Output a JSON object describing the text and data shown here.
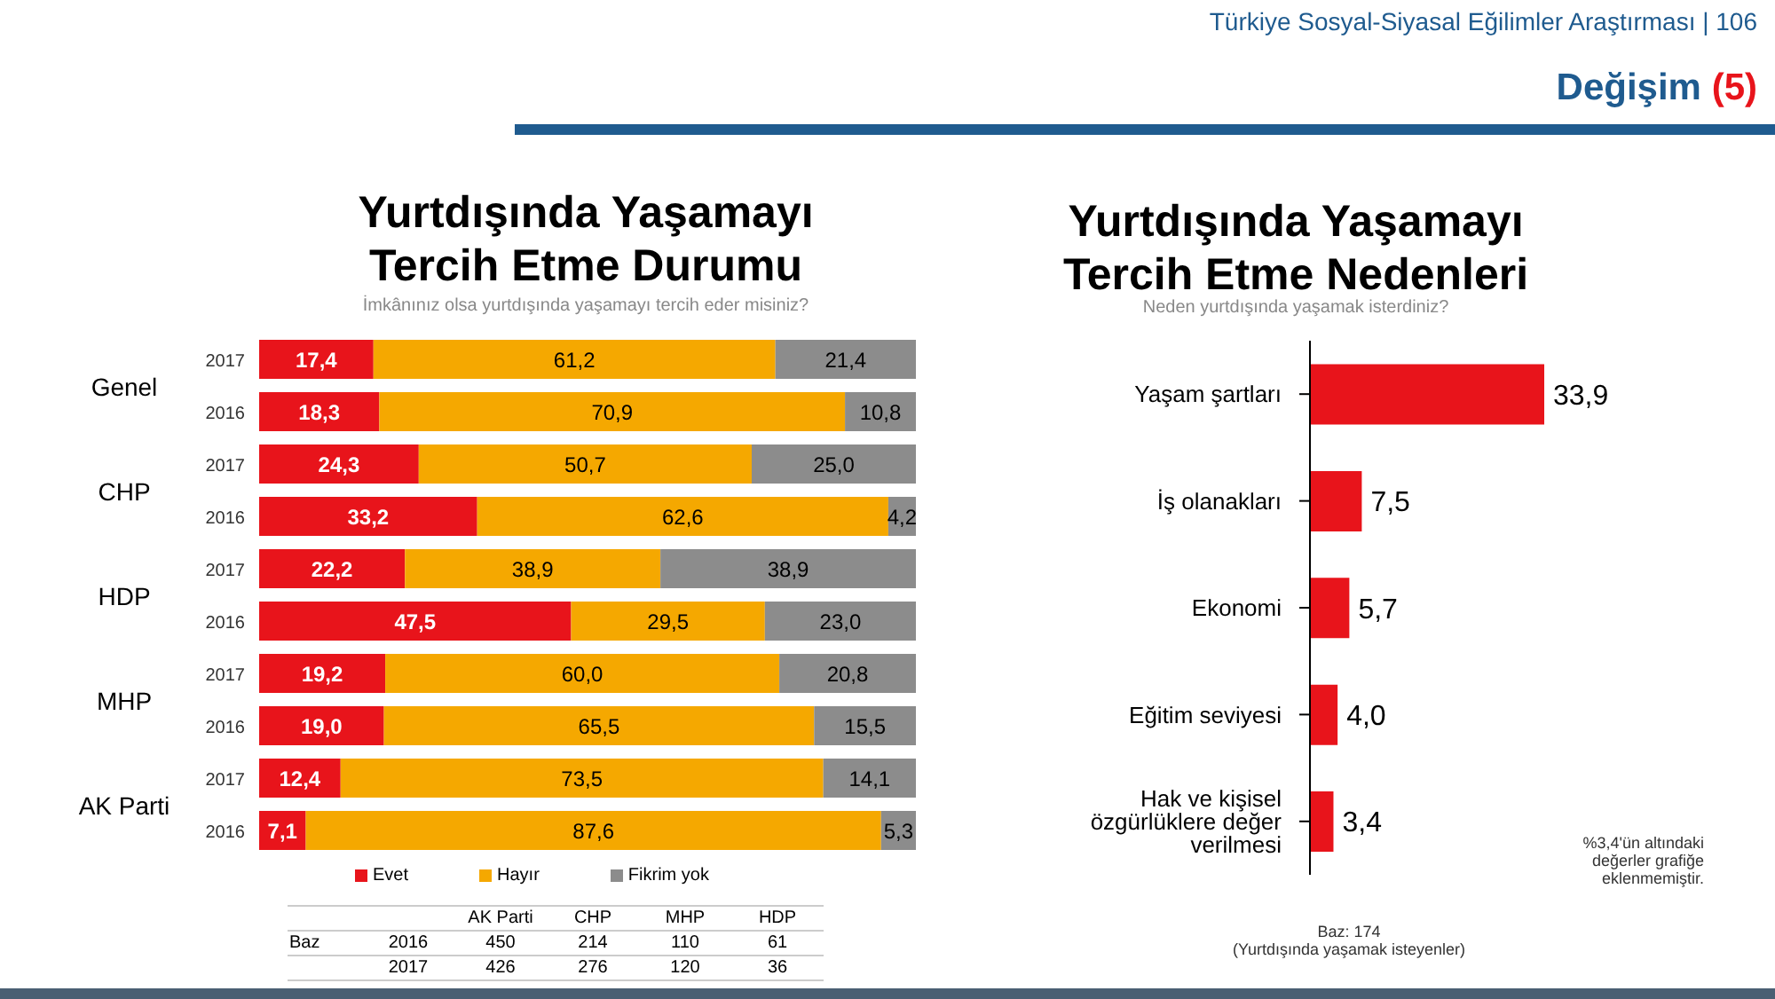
{
  "chart_data": [
    {
      "type": "bar",
      "orientation": "horizontal",
      "stacked": true,
      "title": "Yurtdışında Yaşamayı Tercih Etme Durumu",
      "subtitle": "İmkânınız olsa yurtdışında yaşamayı tercih eder misiniz?",
      "categories": [
        "2017",
        "2016",
        "2017",
        "2016",
        "2017",
        "2016",
        "2017",
        "2016",
        "2017",
        "2016"
      ],
      "series": [
        {
          "name": "Evet",
          "color": "#e8141b",
          "values": [
            17.4,
            18.3,
            24.3,
            33.2,
            22.2,
            47.5,
            19.2,
            19.0,
            12.4,
            7.1
          ],
          "value_labels": [
            "17,4",
            "18,3",
            "24,3",
            "33,2",
            "22,2",
            "47,5",
            "19,2",
            "19,0",
            "12,4",
            "7,1"
          ]
        },
        {
          "name": "Hayır",
          "color": "#f5a800",
          "values": [
            61.2,
            70.9,
            50.7,
            62.6,
            38.9,
            29.5,
            60.0,
            65.5,
            73.5,
            87.6
          ],
          "value_labels": [
            "61,2",
            "70,9",
            "50,7",
            "62,6",
            "38,9",
            "29,5",
            "60,0",
            "65,5",
            "73,5",
            "87,6"
          ]
        },
        {
          "name": "Fikrim yok",
          "color": "#8c8c8c",
          "values": [
            21.4,
            10.8,
            25.0,
            4.2,
            38.9,
            23.0,
            20.8,
            15.5,
            14.1,
            5.3
          ],
          "value_labels": [
            "21,4",
            "10,8",
            "25,0",
            "4,2",
            "38,9",
            "23,0",
            "20,8",
            "15,5",
            "14,1",
            "5,3"
          ]
        }
      ],
      "legend": "bottom",
      "annotations": [
        "Genel",
        "CHP",
        "HDP",
        "MHP",
        "AK Parti",
        "AK Parti",
        "CHP",
        "MHP",
        "HDP",
        "Baz",
        "2016",
        "450",
        "214",
        "110",
        "61",
        "2017",
        "426",
        "276",
        "120",
        "36"
      ]
    },
    {
      "type": "bar",
      "orientation": "horizontal",
      "title": "Yurtdışında Yaşamayı Tercih Etme Nedenleri",
      "subtitle": "Neden yurtdışında yaşamak isterdiniz?",
      "categories": [
        "Yaşam şartları",
        "İş olanakları",
        "Ekonomi",
        "Eğitim seviyesi",
        "Hak ve kişisel özgürlüklere değer verilmesi"
      ],
      "values": [
        33.9,
        7.5,
        5.7,
        4.0,
        3.4
      ],
      "value_labels": [
        "33,9",
        "7,5",
        "5,7",
        "4,0",
        "3,4"
      ],
      "color": "#e8141b",
      "annotations": [
        "%3,4'ün altındaki değerler grafiğe eklenmemiştir.",
        "Baz: 174",
        "(Yurtdışında yaşamak isteyenler)",
        "Türkiye Sosyal-Siyasal Eğilimler Araştırması | 106",
        "Değişim",
        "(5)"
      ]
    }
  ]
}
